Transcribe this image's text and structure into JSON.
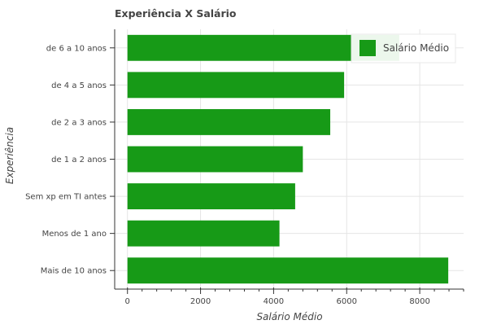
{
  "chart_data": {
    "type": "bar",
    "orientation": "horizontal",
    "title": "Experiência X Salário",
    "xlabel": "Salário Médio",
    "ylabel": "Experiência",
    "categories": [
      "Mais de 10 anos",
      "Menos de 1 ano",
      "Sem xp em TI antes",
      "de 1 a 2 anos",
      "de 2 a 3 anos",
      "de 4 a 5 anos",
      "de 6 a 10 anos"
    ],
    "series": [
      {
        "name": "Salário Médio",
        "color": "#179a17",
        "values": [
          8780,
          4160,
          4590,
          4800,
          5550,
          5930,
          7440
        ]
      }
    ],
    "xlim": [
      -350,
      9200
    ],
    "xticks": [
      0,
      2000,
      4000,
      6000,
      8000
    ],
    "grid": true,
    "legend_position": "top-right"
  }
}
